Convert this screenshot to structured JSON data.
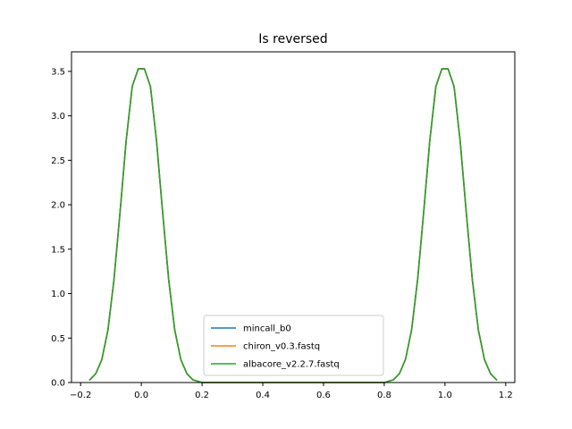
{
  "chart_data": {
    "type": "line",
    "title": "Is reversed",
    "xlabel": "",
    "ylabel": "",
    "xlim": [
      -0.23,
      1.23
    ],
    "ylim": [
      0.0,
      3.72
    ],
    "xticks": [
      -0.2,
      0.0,
      0.2,
      0.4,
      0.6,
      0.8,
      1.0,
      1.2
    ],
    "xtick_labels": [
      "−0.2",
      "0.0",
      "0.2",
      "0.4",
      "0.6",
      "0.8",
      "1.0",
      "1.2"
    ],
    "yticks": [
      0.0,
      0.5,
      1.0,
      1.5,
      2.0,
      2.5,
      3.0,
      3.5
    ],
    "ytick_labels": [
      "0.0",
      "0.5",
      "1.0",
      "1.5",
      "2.0",
      "2.5",
      "3.0",
      "3.5"
    ],
    "grid": false,
    "legend_position": "lower-center",
    "series": [
      {
        "name": "mincall_b0",
        "color": "#1f77b4",
        "x": [
          -0.17,
          -0.15,
          -0.13,
          -0.11,
          -0.09,
          -0.07,
          -0.05,
          -0.03,
          -0.01,
          0.0,
          0.01,
          0.03,
          0.05,
          0.07,
          0.09,
          0.11,
          0.13,
          0.15,
          0.17,
          0.2,
          0.25,
          0.75,
          0.8,
          0.83,
          0.85,
          0.87,
          0.89,
          0.91,
          0.93,
          0.95,
          0.97,
          0.99,
          1.0,
          1.01,
          1.03,
          1.05,
          1.07,
          1.09,
          1.11,
          1.13,
          1.15,
          1.17
        ],
        "y": [
          0.03,
          0.1,
          0.26,
          0.59,
          1.16,
          1.92,
          2.72,
          3.33,
          3.53,
          3.53,
          3.53,
          3.33,
          2.72,
          1.92,
          1.16,
          0.59,
          0.26,
          0.1,
          0.03,
          0.0,
          0.0,
          0.0,
          0.0,
          0.03,
          0.1,
          0.26,
          0.59,
          1.16,
          1.92,
          2.72,
          3.33,
          3.53,
          3.53,
          3.53,
          3.33,
          2.72,
          1.92,
          1.16,
          0.59,
          0.26,
          0.1,
          0.03
        ]
      },
      {
        "name": "chiron_v0.3.fastq",
        "color": "#ff7f0e",
        "x": [
          -0.17,
          -0.15,
          -0.13,
          -0.11,
          -0.09,
          -0.07,
          -0.05,
          -0.03,
          -0.01,
          0.0,
          0.01,
          0.03,
          0.05,
          0.07,
          0.09,
          0.11,
          0.13,
          0.15,
          0.17,
          0.2,
          0.25,
          0.75,
          0.8,
          0.83,
          0.85,
          0.87,
          0.89,
          0.91,
          0.93,
          0.95,
          0.97,
          0.99,
          1.0,
          1.01,
          1.03,
          1.05,
          1.07,
          1.09,
          1.11,
          1.13,
          1.15,
          1.17
        ],
        "y": [
          0.03,
          0.1,
          0.26,
          0.59,
          1.16,
          1.92,
          2.72,
          3.33,
          3.53,
          3.53,
          3.53,
          3.33,
          2.72,
          1.92,
          1.16,
          0.59,
          0.26,
          0.1,
          0.03,
          0.0,
          0.0,
          0.0,
          0.0,
          0.03,
          0.1,
          0.26,
          0.59,
          1.16,
          1.92,
          2.72,
          3.33,
          3.53,
          3.53,
          3.53,
          3.33,
          2.72,
          1.92,
          1.16,
          0.59,
          0.26,
          0.1,
          0.03
        ]
      },
      {
        "name": "albacore_v2.2.7.fastq",
        "color": "#2ca02c",
        "x": [
          -0.17,
          -0.15,
          -0.13,
          -0.11,
          -0.09,
          -0.07,
          -0.05,
          -0.03,
          -0.01,
          0.0,
          0.01,
          0.03,
          0.05,
          0.07,
          0.09,
          0.11,
          0.13,
          0.15,
          0.17,
          0.2,
          0.25,
          0.75,
          0.8,
          0.83,
          0.85,
          0.87,
          0.89,
          0.91,
          0.93,
          0.95,
          0.97,
          0.99,
          1.0,
          1.01,
          1.03,
          1.05,
          1.07,
          1.09,
          1.11,
          1.13,
          1.15,
          1.17
        ],
        "y": [
          0.03,
          0.1,
          0.26,
          0.59,
          1.16,
          1.92,
          2.72,
          3.33,
          3.53,
          3.53,
          3.53,
          3.33,
          2.72,
          1.92,
          1.16,
          0.59,
          0.26,
          0.1,
          0.03,
          0.0,
          0.0,
          0.0,
          0.0,
          0.03,
          0.1,
          0.26,
          0.59,
          1.16,
          1.92,
          2.72,
          3.33,
          3.53,
          3.53,
          3.53,
          3.33,
          2.72,
          1.92,
          1.16,
          0.59,
          0.26,
          0.1,
          0.03
        ]
      }
    ]
  }
}
